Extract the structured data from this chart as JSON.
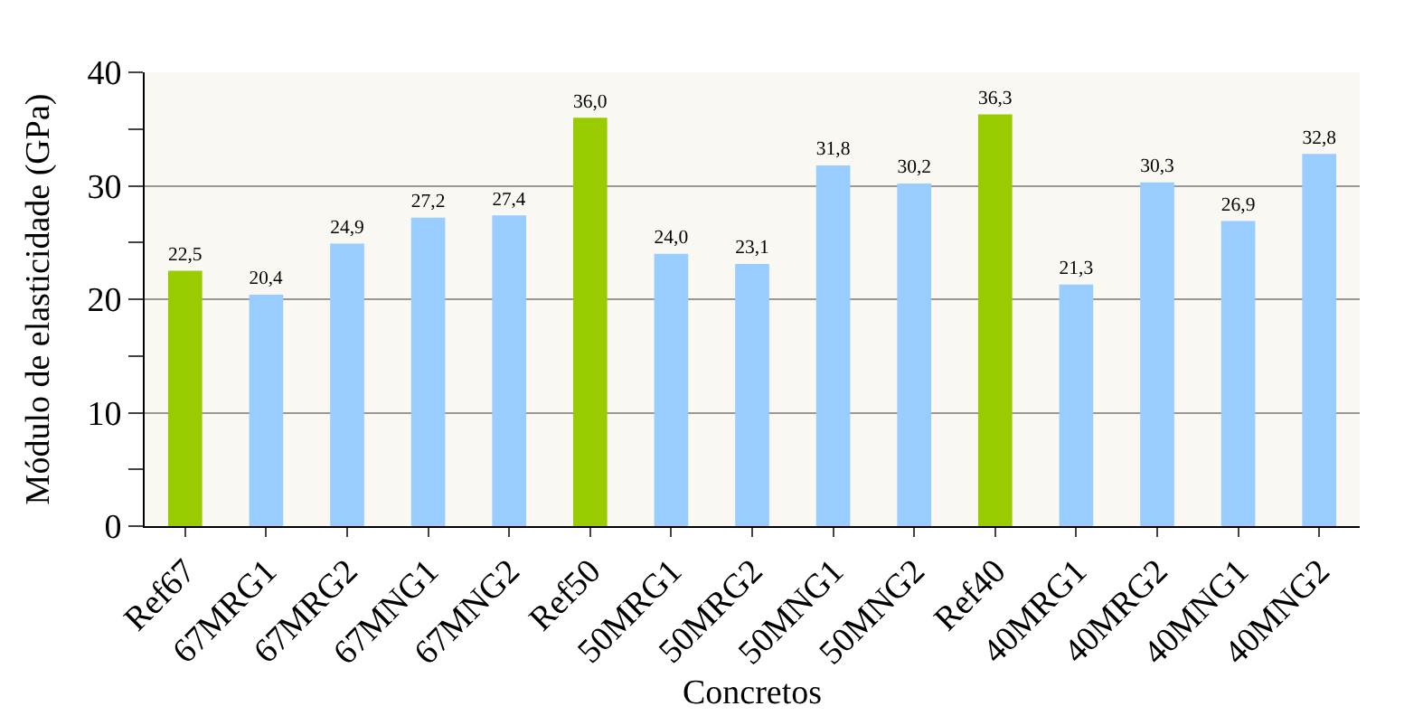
{
  "chart_data": {
    "type": "bar",
    "xlabel": "Concretos",
    "ylabel": "Módulo de elasticidade (GPa)",
    "categories": [
      "Ref67",
      "67MRG1",
      "67MRG2",
      "67MNG1",
      "67MNG2",
      "Ref50",
      "50MRG1",
      "50MRG2",
      "50MNG1",
      "50MNG2",
      "Ref40",
      "40MRG1",
      "40MRG2",
      "40MNG1",
      "40MNG2"
    ],
    "values": [
      22.5,
      20.4,
      24.9,
      27.2,
      27.4,
      36.0,
      24.0,
      23.1,
      31.8,
      30.2,
      36.3,
      21.3,
      30.3,
      26.9,
      32.8
    ],
    "value_labels": [
      "22,5",
      "20,4",
      "24,9",
      "27,2",
      "27,4",
      "36,0",
      "24,0",
      "23,1",
      "31,8",
      "30,2",
      "36,3",
      "21,3",
      "30,3",
      "26,9",
      "32,8"
    ],
    "colors": [
      "#99cc00",
      "#99ccff",
      "#99ccff",
      "#99ccff",
      "#99ccff",
      "#99cc00",
      "#99ccff",
      "#99ccff",
      "#99ccff",
      "#99ccff",
      "#99cc00",
      "#99ccff",
      "#99ccff",
      "#99ccff",
      "#99ccff"
    ],
    "ylim": [
      0,
      40
    ],
    "yticks": [
      0,
      {
        "value": 5,
        "label": null
      },
      10,
      {
        "value": 15,
        "label": null
      },
      20,
      {
        "value": 25,
        "label": null
      },
      30,
      {
        "value": 35,
        "label": null
      },
      40
    ],
    "grid": "y",
    "legend": false
  }
}
